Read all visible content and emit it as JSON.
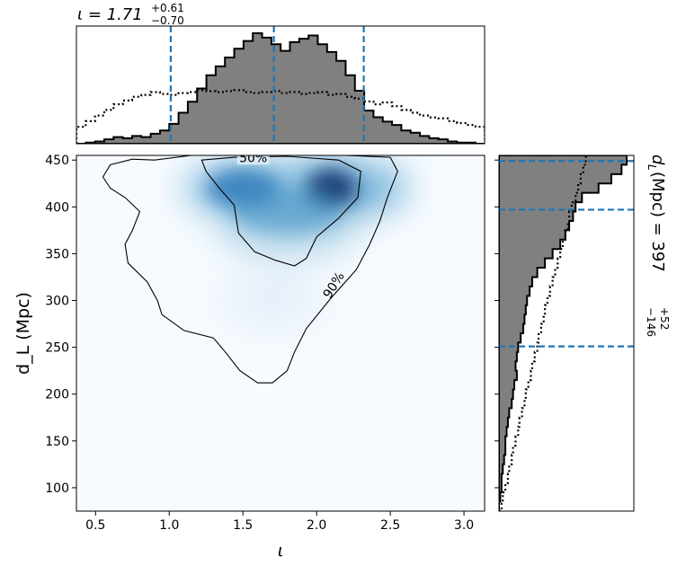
{
  "chart_data": [
    {
      "panel": "top-marginal",
      "type": "histogram",
      "title_prefix": "ι = 1.71",
      "title_sup": "+0.61",
      "title_sub": "−0.70",
      "x_range": [
        0.37,
        3.14
      ],
      "bins": [
        0.37,
        0.433,
        0.496,
        0.559,
        0.622,
        0.685,
        0.748,
        0.811,
        0.874,
        0.937,
        1.0,
        1.063,
        1.126,
        1.189,
        1.252,
        1.315,
        1.378,
        1.441,
        1.504,
        1.567,
        1.63,
        1.693,
        1.756,
        1.819,
        1.882,
        1.945,
        2.008,
        2.071,
        2.134,
        2.197,
        2.26,
        2.323,
        2.386,
        2.449,
        2.512,
        2.575,
        2.638,
        2.701,
        2.764,
        2.827,
        2.89,
        2.953,
        3.016,
        3.079,
        3.142
      ],
      "posterior_density": [
        0,
        0.01,
        0.02,
        0.04,
        0.06,
        0.05,
        0.07,
        0.06,
        0.09,
        0.12,
        0.18,
        0.28,
        0.38,
        0.5,
        0.62,
        0.7,
        0.78,
        0.86,
        0.93,
        1.0,
        0.96,
        0.9,
        0.84,
        0.92,
        0.95,
        0.98,
        0.9,
        0.83,
        0.75,
        0.62,
        0.48,
        0.3,
        0.24,
        0.2,
        0.17,
        0.12,
        0.1,
        0.07,
        0.05,
        0.04,
        0.02,
        0.01,
        0.01,
        0
      ],
      "prior_density": [
        0.18,
        0.24,
        0.3,
        0.36,
        0.42,
        0.46,
        0.5,
        0.52,
        0.55,
        0.53,
        0.52,
        0.54,
        0.55,
        0.57,
        0.56,
        0.55,
        0.56,
        0.57,
        0.55,
        0.54,
        0.55,
        0.56,
        0.54,
        0.55,
        0.53,
        0.54,
        0.55,
        0.52,
        0.53,
        0.5,
        0.48,
        0.45,
        0.42,
        0.44,
        0.4,
        0.36,
        0.33,
        0.3,
        0.28,
        0.27,
        0.24,
        0.22,
        0.2,
        0.18
      ],
      "quantile_lines": [
        1.01,
        1.71,
        2.32
      ]
    },
    {
      "panel": "joint",
      "type": "heatmap",
      "xlabel": "ι",
      "ylabel": "d_L (Mpc)",
      "xlim": [
        0.37,
        3.14
      ],
      "ylim": [
        75,
        455
      ],
      "xticks": [
        "0.5",
        "1.0",
        "1.5",
        "2.0",
        "2.5",
        "3.0"
      ],
      "yticks": [
        "100",
        "150",
        "200",
        "250",
        "300",
        "350",
        "400",
        "450"
      ],
      "density_peaks": [
        {
          "x": 2.1,
          "y": 420,
          "w": 1.0
        },
        {
          "x": 1.55,
          "y": 420,
          "w": 0.7
        },
        {
          "x": 1.8,
          "y": 380,
          "w": 0.45
        },
        {
          "x": 1.7,
          "y": 300,
          "w": 0.15
        }
      ],
      "contour_labels": [
        "50%",
        "90%"
      ],
      "contour_50": [
        [
          1.22,
          450
        ],
        [
          1.44,
          453
        ],
        [
          1.8,
          454
        ],
        [
          2.15,
          450
        ],
        [
          2.3,
          438
        ],
        [
          2.28,
          410
        ],
        [
          2.15,
          388
        ],
        [
          2.0,
          368
        ],
        [
          1.93,
          345
        ],
        [
          1.85,
          337
        ],
        [
          1.72,
          343
        ],
        [
          1.58,
          352
        ],
        [
          1.47,
          372
        ],
        [
          1.44,
          402
        ],
        [
          1.34,
          420
        ],
        [
          1.25,
          438
        ]
      ],
      "contour_90": [
        [
          0.9,
          450
        ],
        [
          1.15,
          455
        ],
        [
          1.6,
          455
        ],
        [
          2.2,
          455
        ],
        [
          2.5,
          453
        ],
        [
          2.55,
          438
        ],
        [
          2.48,
          410
        ],
        [
          2.43,
          385
        ],
        [
          2.36,
          360
        ],
        [
          2.27,
          333
        ],
        [
          2.1,
          303
        ],
        [
          1.93,
          270
        ],
        [
          1.85,
          245
        ],
        [
          1.8,
          225
        ],
        [
          1.7,
          212
        ],
        [
          1.6,
          212
        ],
        [
          1.48,
          225
        ],
        [
          1.38,
          245
        ],
        [
          1.3,
          260
        ],
        [
          1.1,
          268
        ],
        [
          0.95,
          285
        ],
        [
          0.92,
          300
        ],
        [
          0.85,
          320
        ],
        [
          0.72,
          340
        ],
        [
          0.7,
          360
        ],
        [
          0.75,
          375
        ],
        [
          0.8,
          395
        ],
        [
          0.7,
          410
        ],
        [
          0.6,
          420
        ],
        [
          0.55,
          432
        ],
        [
          0.6,
          445
        ],
        [
          0.75,
          451
        ]
      ]
    },
    {
      "panel": "right-marginal",
      "type": "histogram",
      "orientation": "horizontal",
      "title_prefix": "d",
      "title_sub_var": "L",
      "title_mid": " (Mpc) = 397",
      "title_sup": "+52",
      "title_sub": "−146",
      "y_range": [
        75,
        455
      ],
      "bins": [
        75,
        85,
        95,
        105,
        115,
        125,
        135,
        145,
        155,
        165,
        175,
        185,
        195,
        205,
        215,
        225,
        235,
        245,
        255,
        265,
        275,
        285,
        295,
        305,
        315,
        325,
        335,
        345,
        355,
        365,
        375,
        385,
        395,
        405,
        415,
        425,
        435,
        445,
        455
      ],
      "posterior_density": [
        0,
        0.01,
        0.02,
        0.02,
        0.03,
        0.04,
        0.05,
        0.05,
        0.06,
        0.07,
        0.08,
        0.1,
        0.11,
        0.12,
        0.14,
        0.13,
        0.14,
        0.15,
        0.17,
        0.19,
        0.2,
        0.21,
        0.22,
        0.24,
        0.26,
        0.3,
        0.36,
        0.42,
        0.48,
        0.52,
        0.55,
        0.58,
        0.6,
        0.65,
        0.78,
        0.88,
        0.96,
        1.0
      ],
      "prior_density": [
        0.02,
        0.03,
        0.05,
        0.07,
        0.08,
        0.1,
        0.11,
        0.13,
        0.15,
        0.16,
        0.18,
        0.2,
        0.21,
        0.23,
        0.25,
        0.26,
        0.28,
        0.3,
        0.31,
        0.33,
        0.35,
        0.36,
        0.38,
        0.4,
        0.42,
        0.44,
        0.46,
        0.48,
        0.5,
        0.52,
        0.54,
        0.55,
        0.57,
        0.6,
        0.62,
        0.64,
        0.66,
        0.68
      ],
      "quantile_lines": [
        251,
        397,
        449
      ]
    }
  ]
}
